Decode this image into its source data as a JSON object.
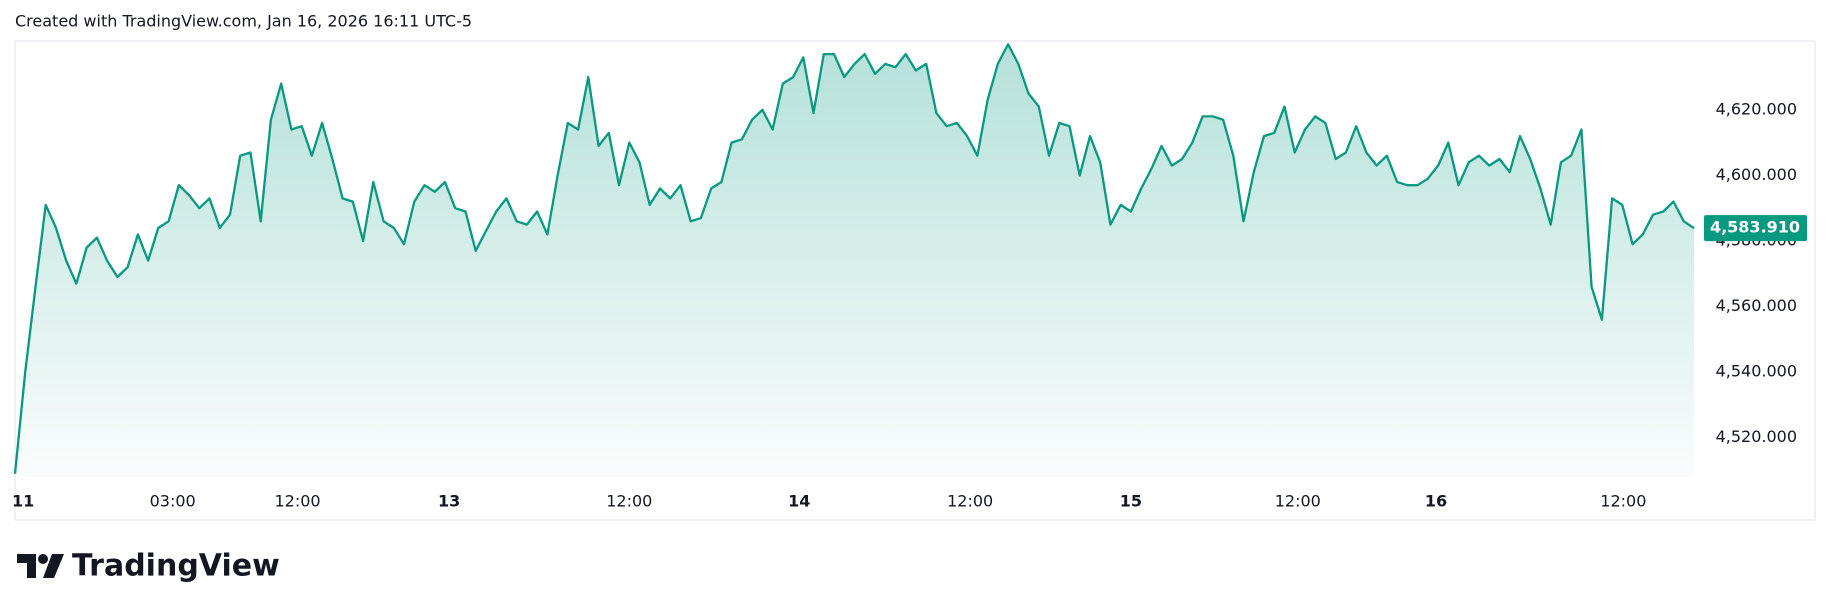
{
  "header": "Created with TradingView.com, Jan 16, 2026 16:11 UTC-5",
  "brand": "TradingView",
  "chart_data": {
    "type": "area",
    "color": "#089981",
    "values": [
      4509,
      4540,
      4566,
      4591,
      4584,
      4574,
      4567,
      4578,
      4581,
      4574,
      4569,
      4572,
      4582,
      4574,
      4584,
      4586,
      4597,
      4594,
      4590,
      4593,
      4584,
      4588,
      4606,
      4607,
      4586,
      4617,
      4628,
      4614,
      4615,
      4606,
      4616,
      4605,
      4593,
      4592,
      4580,
      4598,
      4586,
      4584,
      4579,
      4592,
      4597,
      4595,
      4598,
      4590,
      4589,
      4577,
      4583,
      4589,
      4593,
      4586,
      4585,
      4589,
      4582,
      4600,
      4616,
      4614,
      4630,
      4609,
      4613,
      4597,
      4610,
      4604,
      4591,
      4596,
      4593,
      4597,
      4586,
      4587,
      4596,
      4598,
      4610,
      4611,
      4617,
      4620,
      4614,
      4628,
      4630,
      4636,
      4619,
      4637,
      4637,
      4630,
      4634,
      4637,
      4631,
      4634,
      4633,
      4637,
      4632,
      4634,
      4619,
      4615,
      4616,
      4612,
      4606,
      4623,
      4634,
      4640,
      4634,
      4625,
      4621,
      4606,
      4616,
      4615,
      4600,
      4612,
      4604,
      4585,
      4591,
      4589,
      4596,
      4602,
      4609,
      4603,
      4605,
      4610,
      4618,
      4618,
      4617,
      4606,
      4586,
      4601,
      4612,
      4613,
      4621,
      4607,
      4614,
      4618,
      4616,
      4605,
      4607,
      4615,
      4607,
      4603,
      4606,
      4598,
      4597,
      4597,
      4599,
      4603,
      4610,
      4597,
      4604,
      4606,
      4603,
      4605,
      4601,
      4612,
      4605,
      4596,
      4585,
      4604,
      4606,
      4614,
      4566,
      4556,
      4593,
      4591,
      4579,
      4582,
      4588,
      4589,
      4592,
      4586,
      4583.91
    ],
    "last_value_label": "4,583.910",
    "xlim": [
      0,
      164
    ],
    "xticks": [
      {
        "value": 0.8,
        "label": "11"
      },
      {
        "value": 15.4,
        "label": "03:00"
      },
      {
        "value": 27.6,
        "label": "12:00"
      },
      {
        "value": 42.4,
        "label": "13"
      },
      {
        "value": 60,
        "label": "12:00"
      },
      {
        "value": 76.6,
        "label": "14"
      },
      {
        "value": 93.3,
        "label": "12:00"
      },
      {
        "value": 109,
        "label": "15"
      },
      {
        "value": 125.3,
        "label": "12:00"
      },
      {
        "value": 138.8,
        "label": "16"
      },
      {
        "value": 157.1,
        "label": "12:00"
      }
    ],
    "ylim": [
      4508,
      4641
    ],
    "yticks": [
      {
        "value": 4520,
        "label": "4,520.000"
      },
      {
        "value": 4540,
        "label": "4,540.000"
      },
      {
        "value": 4560,
        "label": "4,560.000"
      },
      {
        "value": 4580,
        "label": "4,580.000"
      },
      {
        "value": 4600,
        "label": "4,600.000"
      },
      {
        "value": 4620,
        "label": "4,620.000"
      }
    ]
  }
}
